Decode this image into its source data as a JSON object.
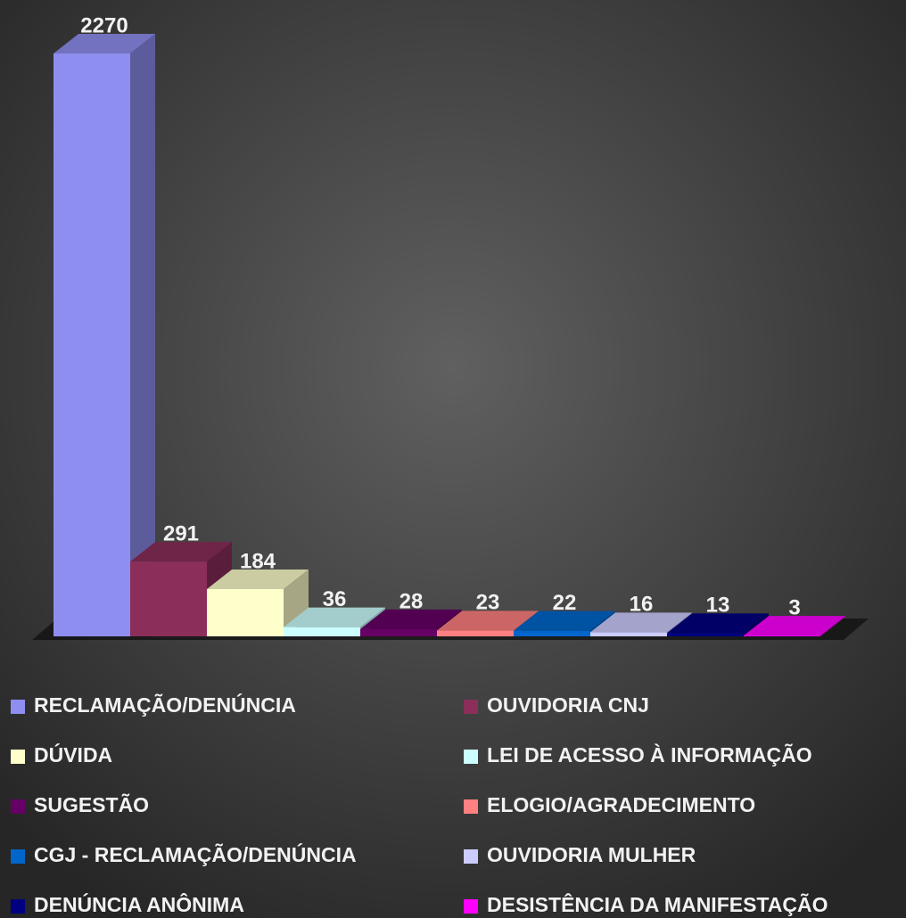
{
  "chart_data": {
    "type": "bar",
    "series": [
      {
        "name": "RECLAMAÇÃO/DENÚNCIA",
        "color": "#8e8ef0",
        "values": [
          2270
        ]
      },
      {
        "name": "OUVIDORIA CNJ",
        "color": "#8b2e5a",
        "values": [
          291
        ]
      },
      {
        "name": "DÚVIDA",
        "color": "#ffffcc",
        "values": [
          184
        ]
      },
      {
        "name": "LEI DE ACESSO À INFORMAÇÃO",
        "color": "#ccffff",
        "values": [
          36
        ]
      },
      {
        "name": "SUGESTÃO",
        "color": "#660066",
        "values": [
          28
        ]
      },
      {
        "name": "ELOGIO/AGRADECIMENTO",
        "color": "#ff8080",
        "values": [
          23
        ]
      },
      {
        "name": "CGJ - RECLAMAÇÃO/DENÚNCIA",
        "color": "#0066cc",
        "values": [
          22
        ]
      },
      {
        "name": "OUVIDORIA MULHER",
        "color": "#ccccff",
        "values": [
          16
        ]
      },
      {
        "name": "DENÚNCIA ANÔNIMA",
        "color": "#000080",
        "values": [
          13
        ]
      },
      {
        "name": "DESISTÊNCIA DA MANIFESTAÇÃO",
        "color": "#ff00ff",
        "values": [
          3
        ]
      }
    ]
  }
}
